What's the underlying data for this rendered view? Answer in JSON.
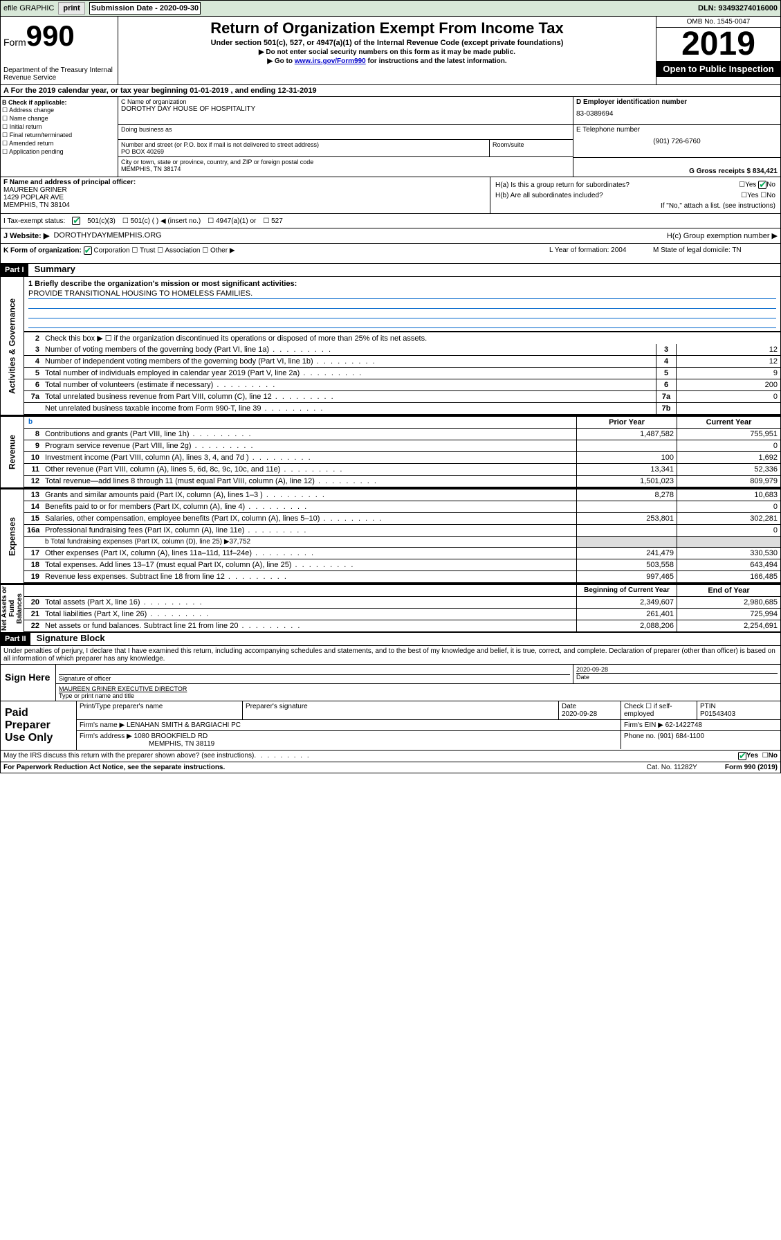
{
  "toolbar": {
    "efile": "efile GRAPHIC",
    "print": "print",
    "submission_label": "Submission Date - 2020-09-30",
    "dln": "DLN: 93493274016000"
  },
  "header": {
    "form_label": "Form",
    "form_number": "990",
    "dept": "Department of the Treasury\nInternal Revenue Service",
    "title": "Return of Organization Exempt From Income Tax",
    "sub1": "Under section 501(c), 527, or 4947(a)(1) of the Internal Revenue Code (except private foundations)",
    "sub2": "▶ Do not enter social security numbers on this form as it may be made public.",
    "sub3_pre": "▶ Go to ",
    "sub3_link": "www.irs.gov/Form990",
    "sub3_post": " for instructions and the latest information.",
    "omb": "OMB No. 1545-0047",
    "year": "2019",
    "inspection": "Open to Public Inspection"
  },
  "line_a": "A  For the 2019 calendar year, or tax year beginning 01-01-2019    , and ending 12-31-2019",
  "b": {
    "label": "B Check if applicable:",
    "opts": [
      "☐ Address change",
      "☐ Name change",
      "☐ Initial return",
      "☐ Final return/terminated",
      "☐ Amended return",
      "☐ Application pending"
    ]
  },
  "c": {
    "name_label": "C Name of organization",
    "name": "DOROTHY DAY HOUSE OF HOSPITALITY",
    "dba_label": "Doing business as",
    "street_label": "Number and street (or P.O. box if mail is not delivered to street address)",
    "room_label": "Room/suite",
    "street": "PO BOX 40269",
    "city_label": "City or town, state or province, country, and ZIP or foreign postal code",
    "city": "MEMPHIS, TN  38174"
  },
  "d": {
    "ein_label": "D Employer identification number",
    "ein": "83-0389694",
    "phone_label": "E Telephone number",
    "phone": "(901) 726-6760",
    "gross_label": "G Gross receipts $ 834,421"
  },
  "f": {
    "label": "F  Name and address of principal officer:",
    "name": "MAUREEN GRINER",
    "addr1": "1429 POPLAR AVE",
    "addr2": "MEMPHIS, TN  38104"
  },
  "h": {
    "a": "H(a)  Is this a group return for subordinates?",
    "a_yes": "Yes",
    "a_no": "No",
    "b": "H(b)  Are all subordinates included?",
    "b_yes": "Yes",
    "b_no": "No",
    "b_note": "If \"No,\" attach a list. (see instructions)",
    "c": "H(c)  Group exemption number ▶"
  },
  "i": {
    "label": "I   Tax-exempt status:",
    "o1": "501(c)(3)",
    "o2": "501(c) (   ) ◀ (insert no.)",
    "o3": "4947(a)(1) or",
    "o4": "527"
  },
  "j": {
    "label": "J   Website: ▶",
    "val": "DOROTHYDAYMEMPHIS.ORG"
  },
  "k": {
    "label": "K Form of organization:",
    "o1": "Corporation",
    "o2": "Trust",
    "o3": "Association",
    "o4": "Other ▶"
  },
  "l": {
    "label": "L Year of formation: 2004"
  },
  "m": {
    "label": "M State of legal domicile: TN"
  },
  "part1": {
    "header": "Part I",
    "title": "Summary"
  },
  "summary": {
    "sidebar1": "Activities & Governance",
    "sidebar2": "Revenue",
    "sidebar3": "Expenses",
    "sidebar4": "Net Assets or Fund Balances",
    "l1": "1  Briefly describe the organization's mission or most significant activities:",
    "l1_val": "PROVIDE TRANSITIONAL HOUSING TO HOMELESS FAMILIES.",
    "l2": "Check this box ▶ ☐  if the organization discontinued its operations or disposed of more than 25% of its net assets.",
    "rows_single": [
      {
        "n": "3",
        "desc": "Number of voting members of the governing body (Part VI, line 1a)",
        "line": "3",
        "val": "12"
      },
      {
        "n": "4",
        "desc": "Number of independent voting members of the governing body (Part VI, line 1b)",
        "line": "4",
        "val": "12"
      },
      {
        "n": "5",
        "desc": "Total number of individuals employed in calendar year 2019 (Part V, line 2a)",
        "line": "5",
        "val": "9"
      },
      {
        "n": "6",
        "desc": "Total number of volunteers (estimate if necessary)",
        "line": "6",
        "val": "200"
      },
      {
        "n": "7a",
        "desc": "Total unrelated business revenue from Part VIII, column (C), line 12",
        "line": "7a",
        "val": "0"
      },
      {
        "n": "",
        "desc": "Net unrelated business taxable income from Form 990-T, line 39",
        "line": "7b",
        "val": ""
      }
    ],
    "hdr_prior": "Prior Year",
    "hdr_current": "Current Year",
    "rev_rows": [
      {
        "n": "8",
        "desc": "Contributions and grants (Part VIII, line 1h)",
        "prior": "1,487,582",
        "curr": "755,951"
      },
      {
        "n": "9",
        "desc": "Program service revenue (Part VIII, line 2g)",
        "prior": "",
        "curr": "0"
      },
      {
        "n": "10",
        "desc": "Investment income (Part VIII, column (A), lines 3, 4, and 7d )",
        "prior": "100",
        "curr": "1,692"
      },
      {
        "n": "11",
        "desc": "Other revenue (Part VIII, column (A), lines 5, 6d, 8c, 9c, 10c, and 11e)",
        "prior": "13,341",
        "curr": "52,336"
      },
      {
        "n": "12",
        "desc": "Total revenue—add lines 8 through 11 (must equal Part VIII, column (A), line 12)",
        "prior": "1,501,023",
        "curr": "809,979"
      }
    ],
    "exp_rows": [
      {
        "n": "13",
        "desc": "Grants and similar amounts paid (Part IX, column (A), lines 1–3 )",
        "prior": "8,278",
        "curr": "10,683"
      },
      {
        "n": "14",
        "desc": "Benefits paid to or for members (Part IX, column (A), line 4)",
        "prior": "",
        "curr": "0"
      },
      {
        "n": "15",
        "desc": "Salaries, other compensation, employee benefits (Part IX, column (A), lines 5–10)",
        "prior": "253,801",
        "curr": "302,281"
      },
      {
        "n": "16a",
        "desc": "Professional fundraising fees (Part IX, column (A), line 11e)",
        "prior": "",
        "curr": "0"
      }
    ],
    "l16b": "b   Total fundraising expenses (Part IX, column (D), line 25) ▶37,752",
    "exp_rows2": [
      {
        "n": "17",
        "desc": "Other expenses (Part IX, column (A), lines 11a–11d, 11f–24e)",
        "prior": "241,479",
        "curr": "330,530"
      },
      {
        "n": "18",
        "desc": "Total expenses. Add lines 13–17 (must equal Part IX, column (A), line 25)",
        "prior": "503,558",
        "curr": "643,494"
      },
      {
        "n": "19",
        "desc": "Revenue less expenses. Subtract line 18 from line 12",
        "prior": "997,465",
        "curr": "166,485"
      }
    ],
    "hdr_begin": "Beginning of Current Year",
    "hdr_end": "End of Year",
    "net_rows": [
      {
        "n": "20",
        "desc": "Total assets (Part X, line 16)",
        "prior": "2,349,607",
        "curr": "2,980,685"
      },
      {
        "n": "21",
        "desc": "Total liabilities (Part X, line 26)",
        "prior": "261,401",
        "curr": "725,994"
      },
      {
        "n": "22",
        "desc": "Net assets or fund balances. Subtract line 21 from line 20",
        "prior": "2,088,206",
        "curr": "2,254,691"
      }
    ]
  },
  "part2": {
    "header": "Part II",
    "title": "Signature Block"
  },
  "perjury": "Under penalties of perjury, I declare that I have examined this return, including accompanying schedules and statements, and to the best of my knowledge and belief, it is true, correct, and complete. Declaration of preparer (other than officer) is based on all information of which preparer has any knowledge.",
  "sign": {
    "here": "Sign Here",
    "sig_label": "Signature of officer",
    "date": "2020-09-28",
    "date_label": "Date",
    "name": "MAUREEN GRINER  EXECUTIVE DIRECTOR",
    "name_label": "Type or print name and title"
  },
  "preparer": {
    "label": "Paid Preparer Use Only",
    "h1": "Print/Type preparer's name",
    "h2": "Preparer's signature",
    "h3": "Date",
    "h3v": "2020-09-28",
    "h4": "Check ☐ if self-employed",
    "h5": "PTIN",
    "h5v": "P01543403",
    "firm_label": "Firm's name     ▶",
    "firm": "LENAHAN SMITH & BARGIACHI PC",
    "firm_ein_label": "Firm's EIN ▶",
    "firm_ein": "62-1422748",
    "addr_label": "Firm's address ▶",
    "addr": "1080 BROOKFIELD RD",
    "addr2": "MEMPHIS, TN  38119",
    "phone_label": "Phone no.",
    "phone": "(901) 684-1100"
  },
  "discuss": {
    "q": "May the IRS discuss this return with the preparer shown above? (see instructions)",
    "yes": "Yes",
    "no": "No"
  },
  "footer": {
    "left": "For Paperwork Reduction Act Notice, see the separate instructions.",
    "mid": "Cat. No. 11282Y",
    "right": "Form 990 (2019)"
  }
}
